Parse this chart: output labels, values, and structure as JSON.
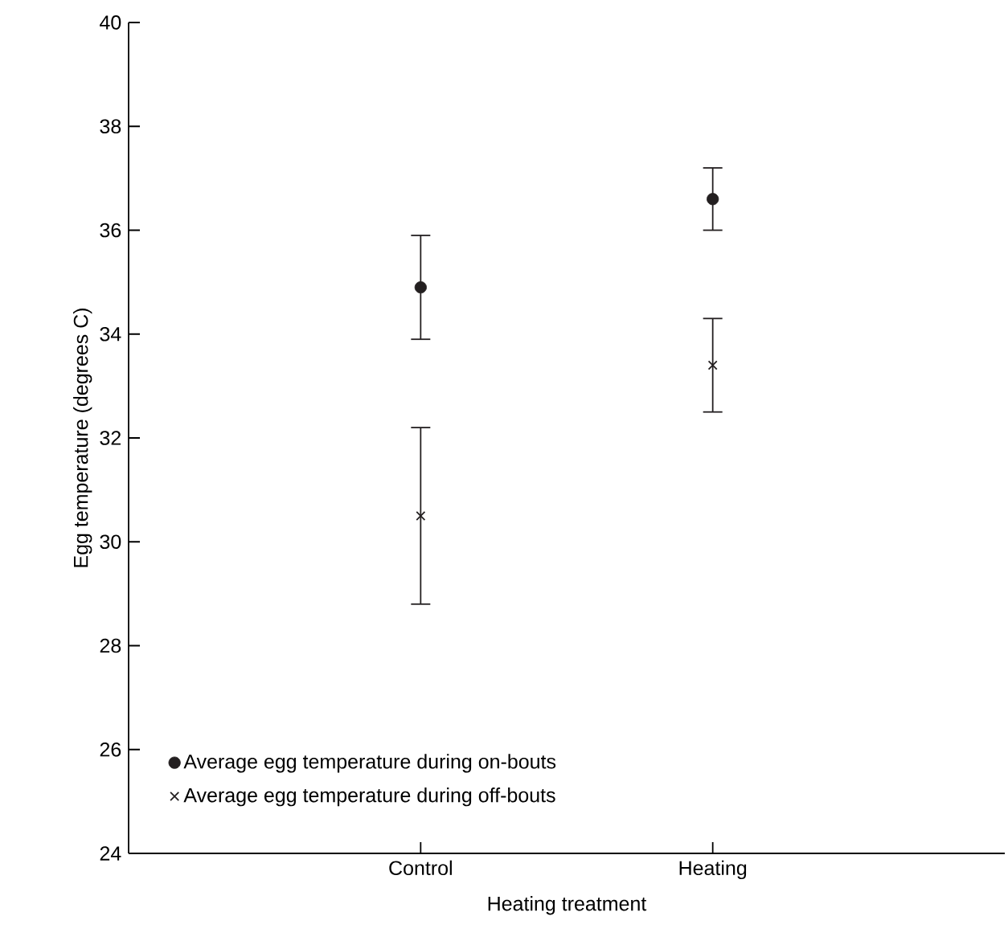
{
  "chart_data": {
    "type": "scatter",
    "xlabel": "Heating treatment",
    "ylabel": "Egg temperature (degrees C)",
    "categories": [
      "Control",
      "Heating"
    ],
    "ylim": [
      24,
      40
    ],
    "yticks": [
      24,
      26,
      28,
      30,
      32,
      34,
      36,
      38,
      40
    ],
    "grid": false,
    "legend": "bottom left",
    "series": [
      {
        "name": "Average egg temperature during on-bouts",
        "color": "#231f20",
        "marker": "circle",
        "values": [
          34.9,
          36.6
        ],
        "errors": [
          1.0,
          0.6
        ]
      },
      {
        "name": "Average egg temperature during off-bouts",
        "color": "#231f20",
        "marker": "cross",
        "values": [
          30.5,
          33.4
        ],
        "errors": [
          1.7,
          0.9
        ]
      }
    ]
  }
}
